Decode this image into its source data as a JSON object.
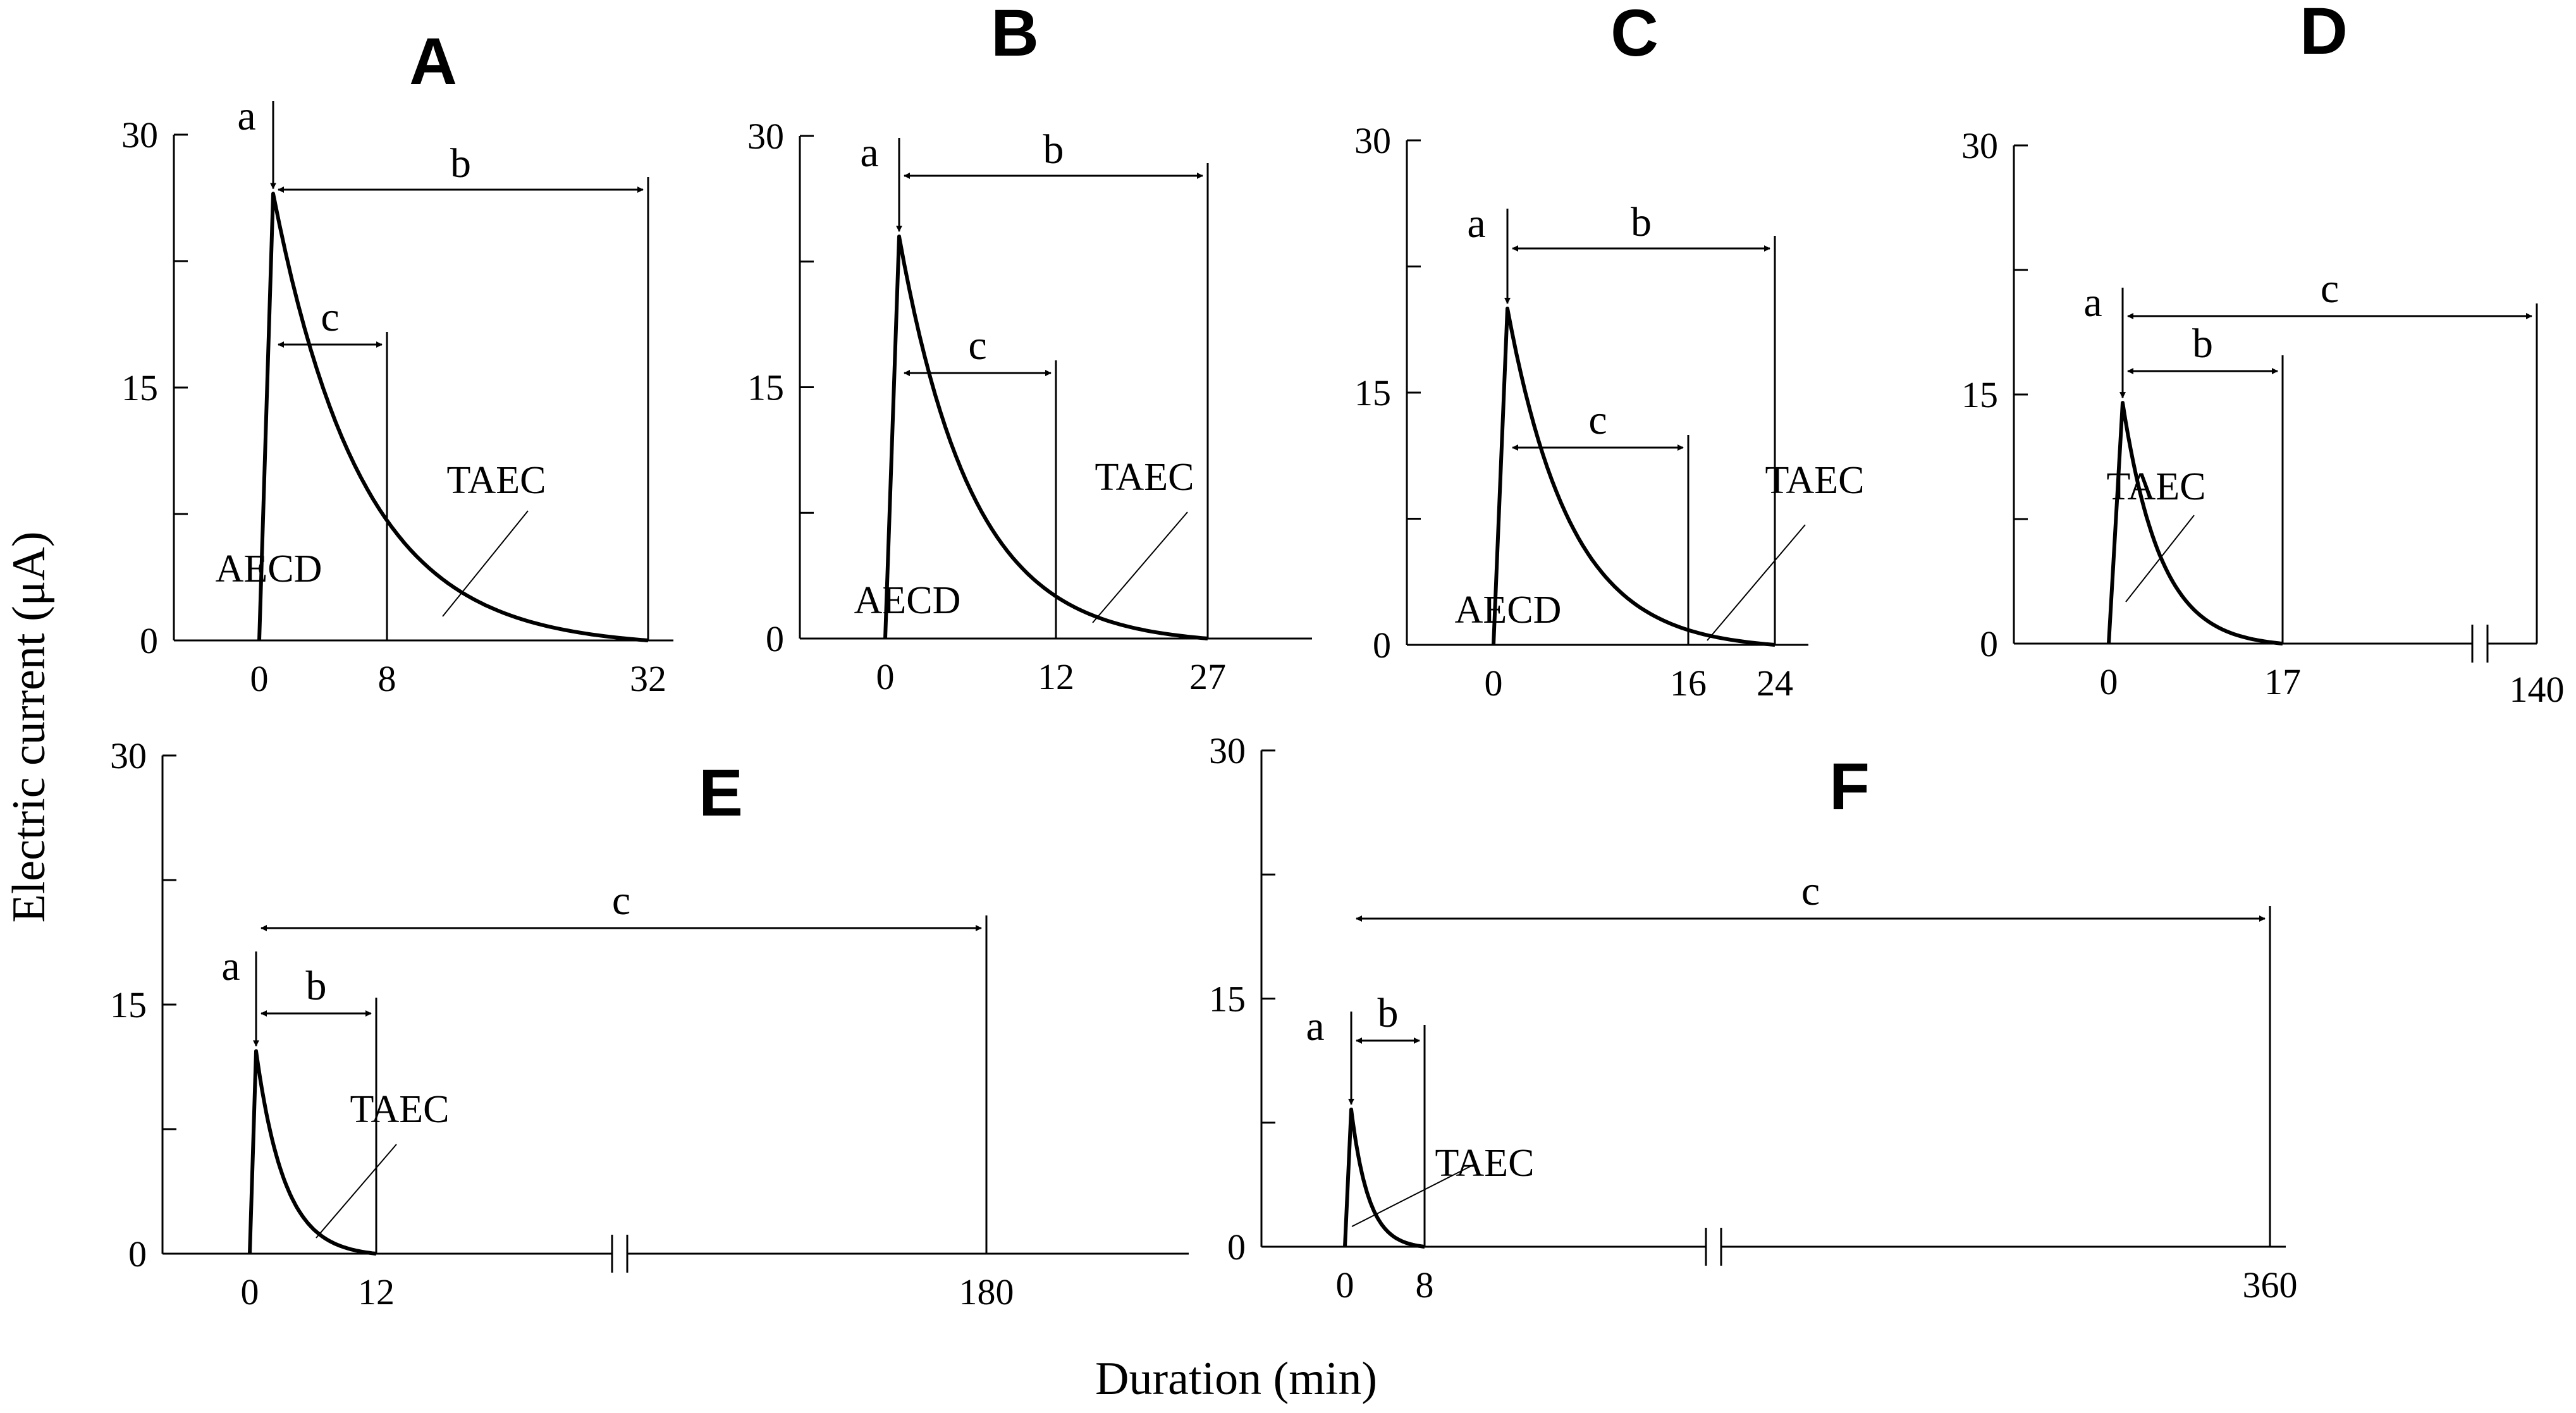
{
  "chart_data": {
    "type": "line",
    "ylabel": "Electric current (μA)",
    "xlabel": "Duration (min)",
    "ylim": [
      0,
      30
    ],
    "y_ticks": [
      0,
      15,
      30
    ],
    "panels": [
      {
        "id": "A",
        "title": "A",
        "x_ticks": [
          0,
          8,
          32
        ],
        "peak": 26.5,
        "curve_end": 32,
        "axis_end": 32,
        "break": null,
        "markers": {
          "a": "a",
          "b": "b",
          "c": "c"
        },
        "b_interval": [
          0,
          32
        ],
        "c_interval": [
          0,
          8
        ],
        "labels": [
          "TAEC",
          "AECD"
        ]
      },
      {
        "id": "B",
        "title": "B",
        "x_ticks": [
          0,
          12,
          27
        ],
        "peak": 24,
        "curve_end": 27,
        "axis_end": 27,
        "break": null,
        "markers": {
          "a": "a",
          "b": "b",
          "c": "c"
        },
        "b_interval": [
          0,
          27
        ],
        "c_interval": [
          0,
          12
        ],
        "labels": [
          "TAEC",
          "AECD"
        ]
      },
      {
        "id": "C",
        "title": "C",
        "x_ticks": [
          0,
          16,
          24
        ],
        "peak": 20,
        "curve_end": 24,
        "axis_end": 24,
        "break": null,
        "markers": {
          "a": "a",
          "b": "b",
          "c": "c"
        },
        "b_interval": [
          0,
          24
        ],
        "c_interval": [
          0,
          16
        ],
        "labels": [
          "TAEC",
          "AECD"
        ]
      },
      {
        "id": "D",
        "title": "D",
        "x_ticks": [
          0,
          17,
          140
        ],
        "peak": 14.5,
        "curve_end": 17,
        "axis_end": 140,
        "break": "axis break",
        "markers": {
          "a": "a",
          "b": "b",
          "c": "c"
        },
        "b_interval": [
          0,
          17
        ],
        "c_interval": [
          0,
          140
        ],
        "labels": [
          "TAEC"
        ]
      },
      {
        "id": "E",
        "title": "E",
        "x_ticks": [
          0,
          12,
          180
        ],
        "peak": 12.2,
        "curve_end": 12,
        "axis_end": 180,
        "break": "axis break",
        "markers": {
          "a": "a",
          "b": "b",
          "c": "c"
        },
        "b_interval": [
          0,
          12
        ],
        "c_interval": [
          0,
          180
        ],
        "labels": [
          "TAEC"
        ]
      },
      {
        "id": "F",
        "title": "F",
        "x_ticks": [
          0,
          8,
          360
        ],
        "peak": 8.3,
        "curve_end": 8,
        "axis_end": 360,
        "break": "axis break",
        "markers": {
          "a": "a",
          "b": "b",
          "c": "c"
        },
        "b_interval": [
          0,
          8
        ],
        "c_interval": [
          0,
          360
        ],
        "labels": [
          "TAEC"
        ]
      }
    ]
  }
}
